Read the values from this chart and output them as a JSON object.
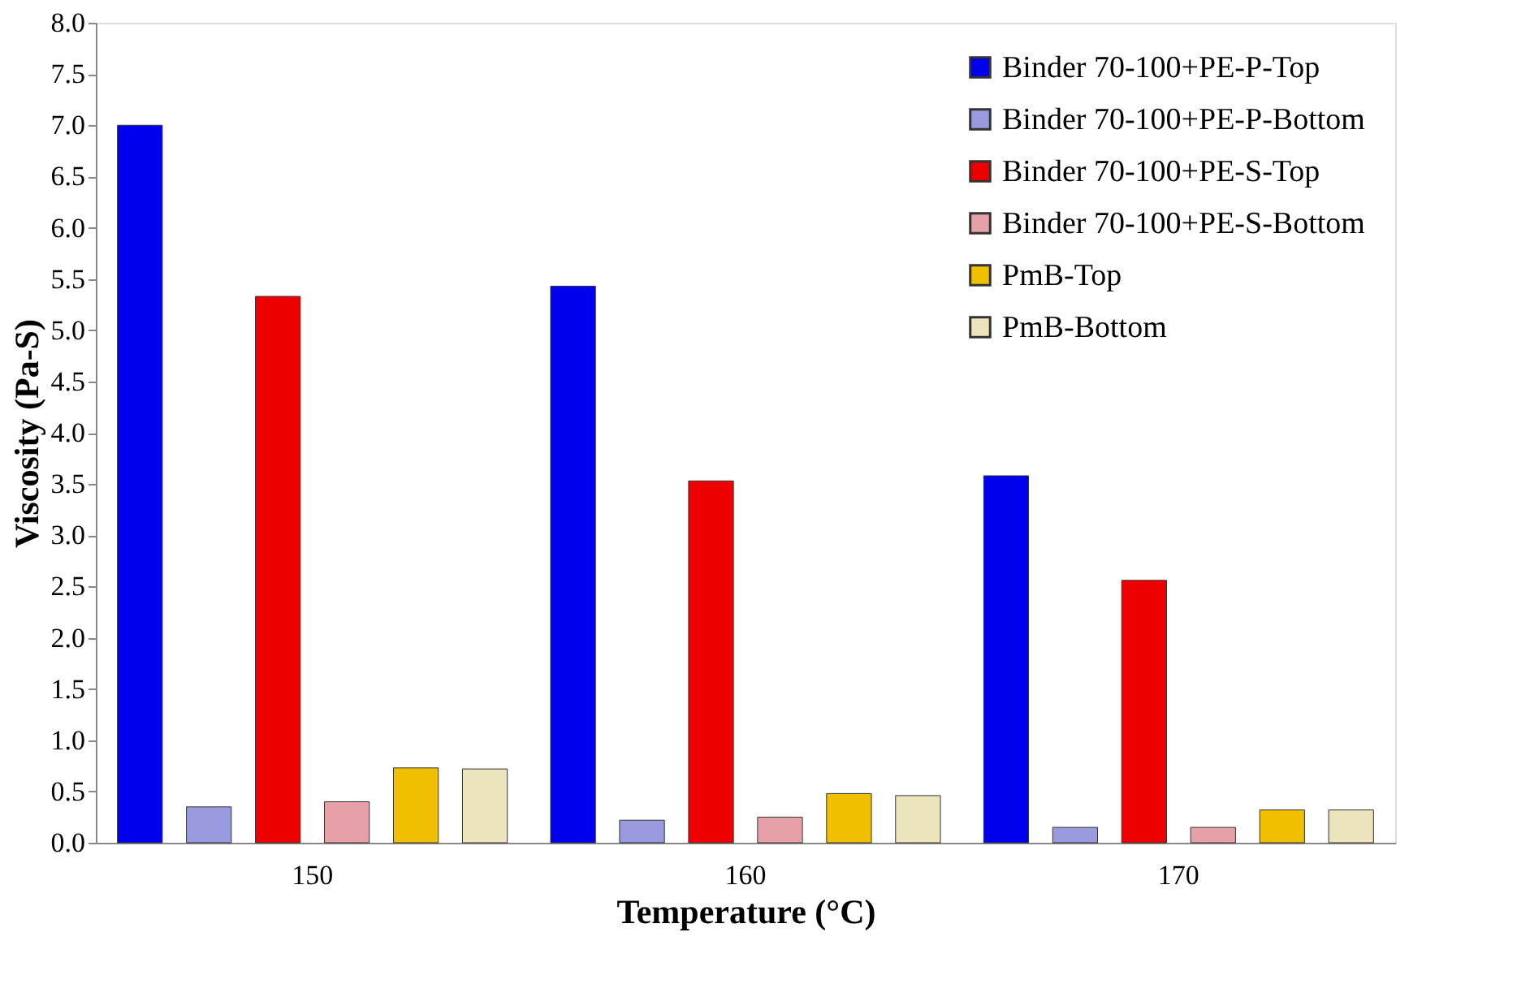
{
  "chart_data": {
    "type": "bar",
    "xlabel": "Temperature (°C)",
    "ylabel": "Viscosity (Pa-S)",
    "categories": [
      "150",
      "160",
      "170"
    ],
    "series": [
      {
        "name": "Binder 70-100+PE-P-Top",
        "color": "#0000ee",
        "values": [
          7.0,
          5.43,
          3.58
        ]
      },
      {
        "name": "Binder 70-100+PE-P-Bottom",
        "color": "#9a9ae0",
        "values": [
          0.35,
          0.22,
          0.15
        ]
      },
      {
        "name": "Binder 70-100+PE-S-Top",
        "color": "#ee0000",
        "values": [
          5.33,
          3.53,
          2.56
        ]
      },
      {
        "name": "Binder 70-100+PE-S-Bottom",
        "color": "#e8a0a8",
        "values": [
          0.4,
          0.25,
          0.15
        ]
      },
      {
        "name": "PmB-Top",
        "color": "#f0c000",
        "values": [
          0.73,
          0.48,
          0.32
        ]
      },
      {
        "name": "PmB-Bottom",
        "color": "#ece4bc",
        "values": [
          0.72,
          0.46,
          0.32
        ]
      }
    ],
    "ylim": [
      0,
      8
    ],
    "yticks": [
      {
        "value": 0,
        "label": "0.0"
      },
      0.5,
      {
        "value": 1,
        "label": "1.0"
      },
      1.5,
      {
        "value": 2,
        "label": "2.0"
      },
      2.5,
      {
        "value": 3,
        "label": "3.0"
      },
      3.5,
      {
        "value": 4,
        "label": "4.0"
      },
      4.5,
      {
        "value": 5,
        "label": "5.0"
      },
      5.5,
      {
        "value": 6,
        "label": "6.0"
      },
      6.5,
      {
        "value": 7,
        "label": "7.0"
      },
      7.5,
      {
        "value": 8,
        "label": "8.0"
      }
    ],
    "grid": false,
    "legend": "top right"
  }
}
